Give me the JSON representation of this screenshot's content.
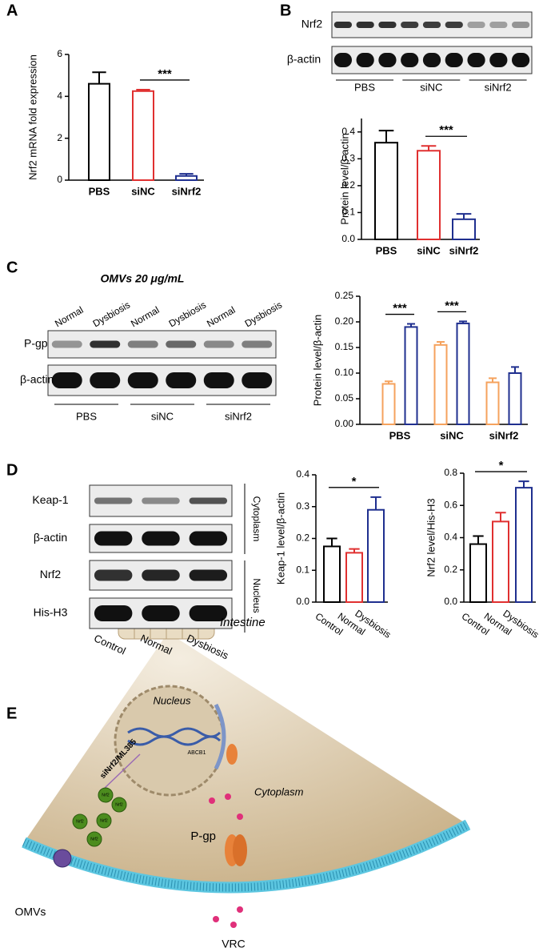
{
  "panel_letters": [
    "A",
    "B",
    "C",
    "D",
    "E"
  ],
  "chart_data": [
    {
      "type": "bar",
      "ylabel": "Nrf2 mRNA fold expression",
      "categories": [
        "PBS",
        "siNC",
        "siNrf2"
      ],
      "values": [
        4.6,
        4.25,
        0.2
      ],
      "errors": [
        0.55,
        0.07,
        0.1
      ],
      "colors": [
        "#000000",
        "#e03030",
        "#1f2f8f"
      ],
      "ylim": [
        0,
        6
      ],
      "yticks": [
        0,
        2,
        4,
        6
      ],
      "annotations": [
        "***"
      ]
    },
    {
      "type": "bar",
      "ylabel": "Protein level/β-actin",
      "categories": [
        "PBS",
        "siNC",
        "siNrf2"
      ],
      "values": [
        0.36,
        0.33,
        0.075
      ],
      "errors": [
        0.045,
        0.018,
        0.02
      ],
      "colors": [
        "#000000",
        "#e03030",
        "#1f2f8f"
      ],
      "ylim": [
        0,
        0.45
      ],
      "yticks": [
        {
          "value": 0,
          "label": "0.0"
        },
        0.1,
        0.2,
        0.3,
        0.4
      ],
      "annotations": [
        "***"
      ]
    },
    {
      "type": "grouped_bar",
      "ylabel": "Protein level/β-actin",
      "categories": [
        "PBS",
        "siNC",
        "siNrf2"
      ],
      "series": [
        {
          "color": "#f5a25d",
          "values": [
            0.079,
            0.155,
            0.082
          ],
          "errors": [
            0.005,
            0.006,
            0.008
          ]
        },
        {
          "color": "#1f2f8f",
          "values": [
            0.19,
            0.197,
            0.1
          ],
          "errors": [
            0.006,
            0.004,
            0.012
          ]
        }
      ],
      "ylim": [
        0,
        0.25
      ],
      "yticks": [
        {
          "value": 0,
          "label": "0.00"
        },
        0.05,
        {
          "value": 0.1,
          "label": "0.10"
        },
        0.15,
        {
          "value": 0.2,
          "label": "0.20"
        },
        0.25
      ],
      "annotations": [
        "***",
        "***"
      ]
    },
    {
      "type": "bar",
      "ylabel": "Keap-1 level/β-actin",
      "categories": [
        "Control",
        "Normal",
        "Dysbiosis"
      ],
      "values": [
        0.175,
        0.155,
        0.29
      ],
      "errors": [
        0.025,
        0.012,
        0.04
      ],
      "colors": [
        "#000000",
        "#e03030",
        "#1f2f8f"
      ],
      "ylim": [
        0,
        0.4
      ],
      "yticks": [
        {
          "value": 0,
          "label": "0.0"
        },
        0.1,
        0.2,
        0.3,
        0.4
      ],
      "annotations": [
        "*"
      ]
    },
    {
      "type": "bar",
      "ylabel": "Nrf2 level/His-H3",
      "categories": [
        "Control",
        "Normal",
        "Dysbiosis"
      ],
      "values": [
        0.36,
        0.5,
        0.71
      ],
      "errors": [
        0.05,
        0.055,
        0.04
      ],
      "colors": [
        "#000000",
        "#e03030",
        "#1f2f8f"
      ],
      "ylim": [
        0,
        0.8
      ],
      "yticks": [
        {
          "value": 0,
          "label": "0.0"
        },
        0.2,
        0.4,
        0.6,
        0.8
      ],
      "annotations": [
        "*"
      ]
    }
  ],
  "blots": {
    "B": {
      "rows": [
        "Nrf2",
        "β-actin"
      ],
      "groups": [
        "PBS",
        "siNC",
        "siNrf2"
      ]
    },
    "C": {
      "title": "OMVs 20 μg/mL",
      "lanes": [
        "Normal",
        "Dysbiosis",
        "Normal",
        "Dysbiosis",
        "Normal",
        "Dysbiosis"
      ],
      "rows": [
        "P-gp",
        "β-actin"
      ],
      "groups": [
        "PBS",
        "siNC",
        "siNrf2"
      ]
    },
    "D": {
      "rows": [
        "Keap-1",
        "β-actin",
        "Nrf2",
        "His-H3"
      ],
      "compartments": [
        "Cytoplasm",
        "Nucleus"
      ],
      "lanes": [
        "Control",
        "Normal",
        "Dysbiosis"
      ]
    }
  },
  "diagram": {
    "intestine": "Intestine",
    "nucleus": "Nucleus",
    "inhibitor": "siNrf2/ML385",
    "gene": "ABCB1",
    "cytoplasm": "Cytoplasm",
    "transporter": "P-gp",
    "omvs": "OMVs",
    "drug": "VRC",
    "nrf2": "Nrf2"
  }
}
